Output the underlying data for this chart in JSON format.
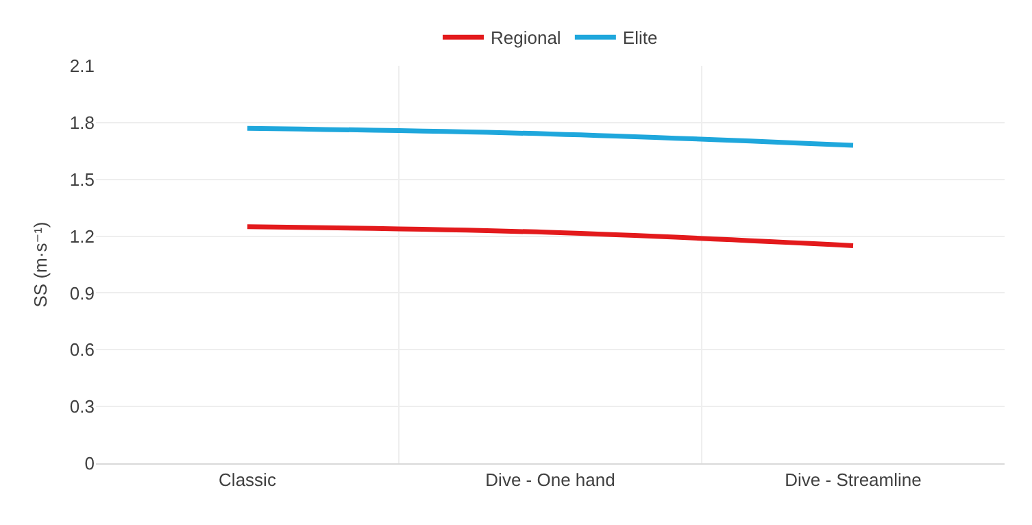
{
  "chart_data": {
    "type": "line",
    "ylabel": "SS (m·s⁻¹)",
    "categories": [
      "Classic",
      "Dive - One hand",
      "Dive - Streamline"
    ],
    "series": [
      {
        "name": "Regional",
        "color": "#e31a1c",
        "values": [
          1.25,
          1.22,
          1.15
        ]
      },
      {
        "name": "Elite",
        "color": "#1fa7dc",
        "values": [
          1.77,
          1.74,
          1.68
        ]
      }
    ],
    "ylim": [
      0,
      2.1
    ],
    "yticks": [
      0,
      0.3,
      0.6,
      0.9,
      1.2,
      1.5,
      1.8,
      2.1
    ],
    "grid": true,
    "legend": "top",
    "marker": "none",
    "line_style": "solid"
  }
}
